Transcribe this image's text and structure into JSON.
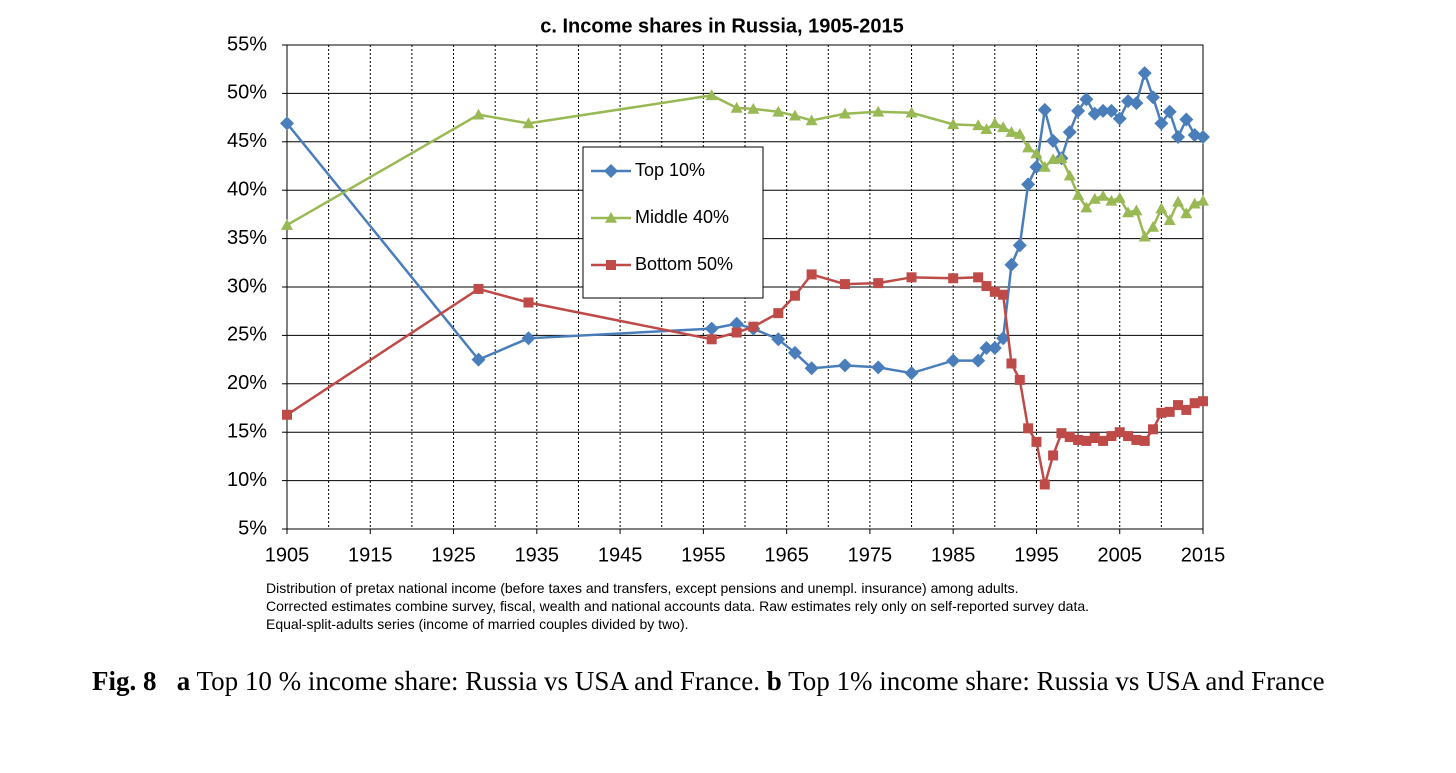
{
  "chart_data": {
    "type": "line",
    "title": "c. Income shares in Russia, 1905-2015",
    "x": [
      1905,
      1928,
      1934,
      1956,
      1959,
      1961,
      1964,
      1966,
      1968,
      1972,
      1976,
      1980,
      1985,
      1988,
      1989,
      1990,
      1991,
      1992,
      1993,
      1994,
      1995,
      1996,
      1997,
      1998,
      1999,
      2000,
      2001,
      2002,
      2003,
      2004,
      2005,
      2006,
      2007,
      2008,
      2009,
      2010,
      2011,
      2012,
      2013,
      2014,
      2015
    ],
    "series": [
      {
        "name": "Top 10%",
        "color": "#4a7ebb",
        "marker": "diamond",
        "values": [
          46.9,
          22.5,
          24.7,
          25.7,
          26.2,
          25.7,
          24.6,
          23.2,
          21.6,
          21.9,
          21.7,
          21.1,
          22.4,
          22.4,
          23.7,
          23.7,
          24.7,
          32.3,
          34.3,
          40.6,
          42.4,
          48.3,
          45.1,
          43.3,
          46.0,
          48.2,
          49.4,
          47.9,
          48.2,
          48.2,
          47.4,
          49.2,
          49.0,
          52.1,
          49.6,
          46.9,
          48.1,
          45.5,
          47.3,
          45.7,
          45.5
        ]
      },
      {
        "name": "Middle 40%",
        "color": "#98b954",
        "marker": "triangle",
        "values": [
          36.4,
          47.8,
          46.9,
          49.8,
          48.5,
          48.4,
          48.1,
          47.7,
          47.2,
          47.9,
          48.1,
          48.0,
          46.8,
          46.7,
          46.3,
          46.9,
          46.5,
          46.0,
          45.8,
          44.4,
          43.8,
          42.4,
          43.2,
          43.3,
          41.5,
          39.5,
          38.2,
          39.1,
          39.4,
          38.9,
          39.2,
          37.7,
          37.9,
          35.2,
          36.2,
          38.1,
          36.9,
          38.8,
          37.6,
          38.6,
          38.9
        ]
      },
      {
        "name": "Bottom 50%",
        "color": "#be4b48",
        "marker": "square",
        "values": [
          16.8,
          29.8,
          28.4,
          24.6,
          25.3,
          25.9,
          27.3,
          29.1,
          31.3,
          30.3,
          30.4,
          31.0,
          30.9,
          31.0,
          30.1,
          29.5,
          29.2,
          22.1,
          20.4,
          15.4,
          14.0,
          9.6,
          12.6,
          14.9,
          14.5,
          14.2,
          14.1,
          14.4,
          14.1,
          14.6,
          15.0,
          14.6,
          14.2,
          14.1,
          15.3,
          17.0,
          17.1,
          17.8,
          17.3,
          18.0,
          18.2
        ]
      }
    ],
    "xlim": [
      1905,
      2015
    ],
    "xticks": [
      1905,
      1915,
      1925,
      1935,
      1945,
      1955,
      1965,
      1975,
      1985,
      1995,
      2005,
      2015
    ],
    "xgrid": [
      1910,
      1915,
      1920,
      1925,
      1930,
      1935,
      1940,
      1945,
      1950,
      1955,
      1960,
      1965,
      1970,
      1975,
      1980,
      1985,
      1990,
      1995,
      2000,
      2005,
      2010
    ],
    "ylim": [
      5,
      55
    ],
    "yticks": [
      {
        "value": 5,
        "label": "5%"
      },
      {
        "value": 10,
        "label": "10%"
      },
      {
        "value": 15,
        "label": "15%"
      },
      {
        "value": 20,
        "label": "20%"
      },
      {
        "value": 25,
        "label": "25%"
      },
      {
        "value": 30,
        "label": "30%"
      },
      {
        "value": 35,
        "label": "35%"
      },
      {
        "value": 40,
        "label": "40%"
      },
      {
        "value": 45,
        "label": "45%"
      },
      {
        "value": 50,
        "label": "50%"
      },
      {
        "value": 55,
        "label": "55%"
      }
    ],
    "grid": true,
    "legend": "upper-left-center",
    "notes": [
      "Distribution of pretax national income (before taxes and transfers, except pensions and unempl. insurance) among adults.",
      "Corrected estimates combine survey, fiscal, wealth and national accounts data. Raw estimates rely only on self-reported survey data.",
      "Equal-split-adults series (income of married couples divided by two)."
    ]
  },
  "caption": {
    "label": "Fig. 8",
    "part_a": "a",
    "text_a": "Top 10 % income share: Russia vs USA and France.",
    "part_b": "b",
    "text_b": "Top 1% income share: Russia vs USA and France"
  }
}
